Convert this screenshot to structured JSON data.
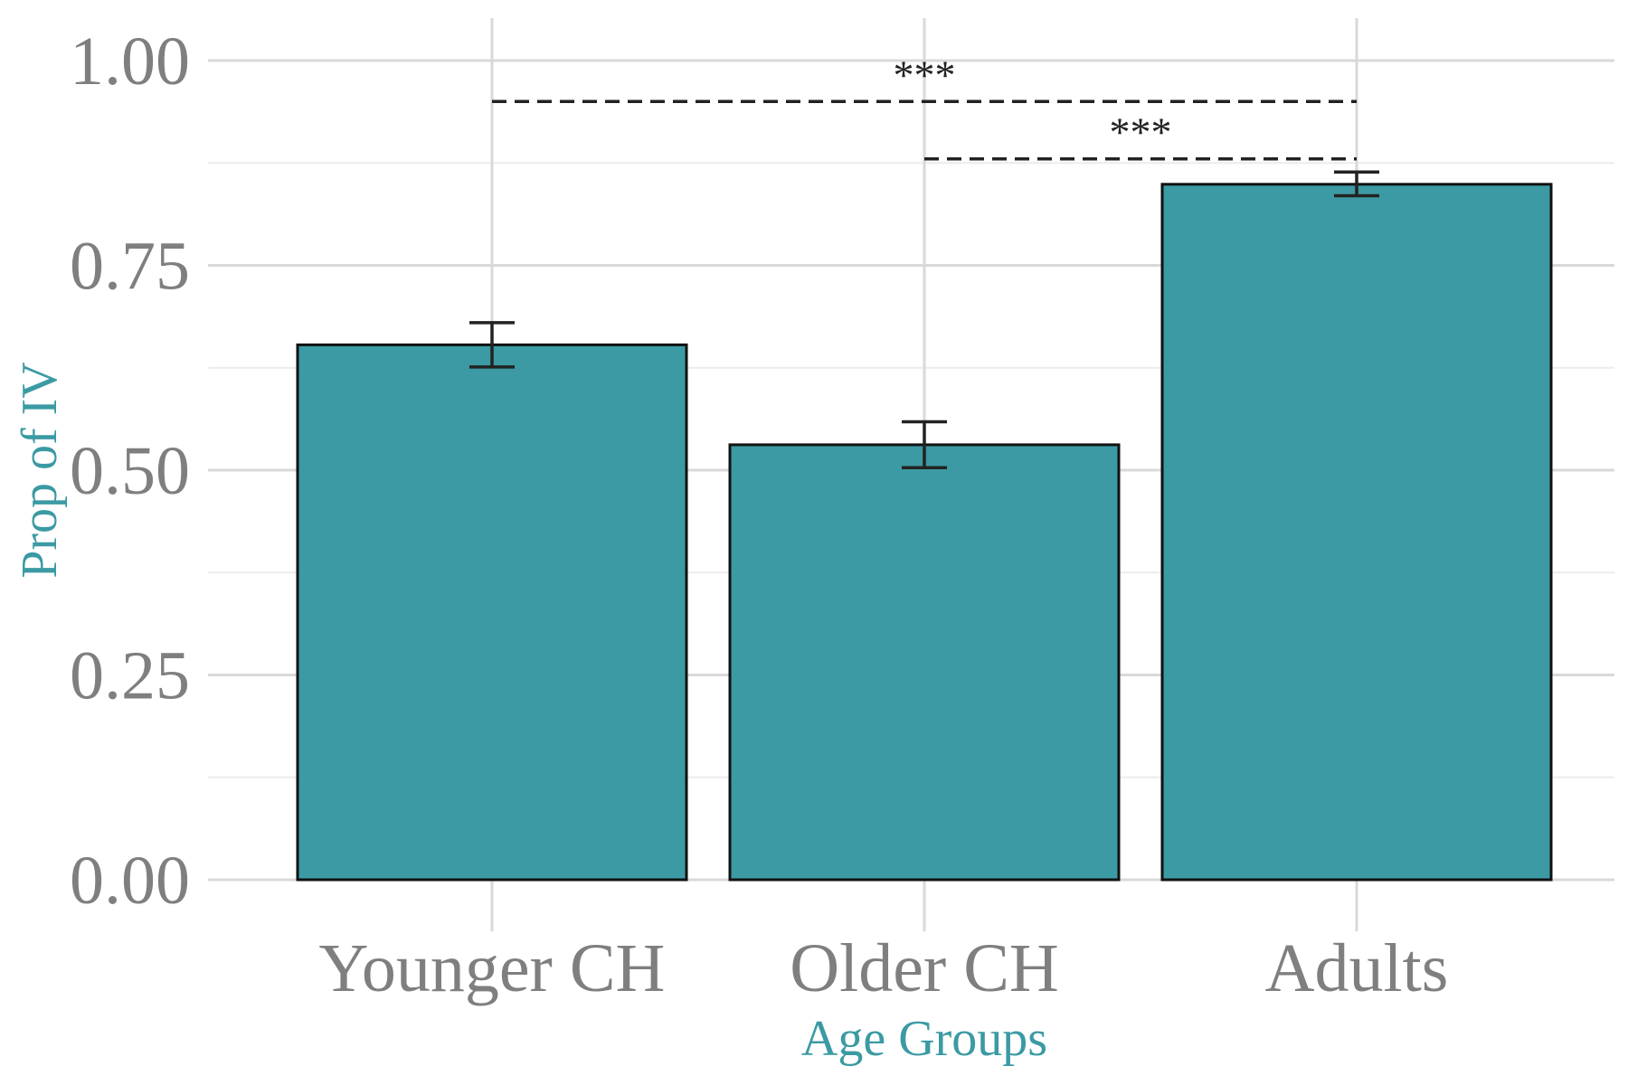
{
  "chart_data": {
    "type": "bar",
    "title": "",
    "xlabel": "Age Groups",
    "ylabel": "Prop of IV",
    "categories": [
      "Younger CH",
      "Older CH",
      "Adults"
    ],
    "values": [
      0.653,
      0.531,
      0.849
    ],
    "error_low": [
      0.626,
      0.503,
      0.835
    ],
    "error_high": [
      0.68,
      0.559,
      0.864
    ],
    "ylim": [
      0,
      1
    ],
    "yticks": [
      0,
      0.25,
      0.5,
      0.75,
      1.0
    ],
    "ytick_labels": [
      "0.00",
      "0.25",
      "0.50",
      "0.75",
      "1.00"
    ],
    "grid": true,
    "legend": "none",
    "significance": [
      {
        "from": "Younger CH",
        "to": "Adults",
        "y": 0.95,
        "label": "***"
      },
      {
        "from": "Older CH",
        "to": "Adults",
        "y": 0.88,
        "label": "***"
      }
    ],
    "colors": {
      "bar_fill": "#3b9aa3",
      "bar_stroke": "#111111",
      "axis_title": "#3b9aa3",
      "tick_label": "#7f7f7f",
      "grid_major": "#d9d9d9",
      "grid_minor": "#ececec",
      "annotation": "#222222"
    }
  }
}
